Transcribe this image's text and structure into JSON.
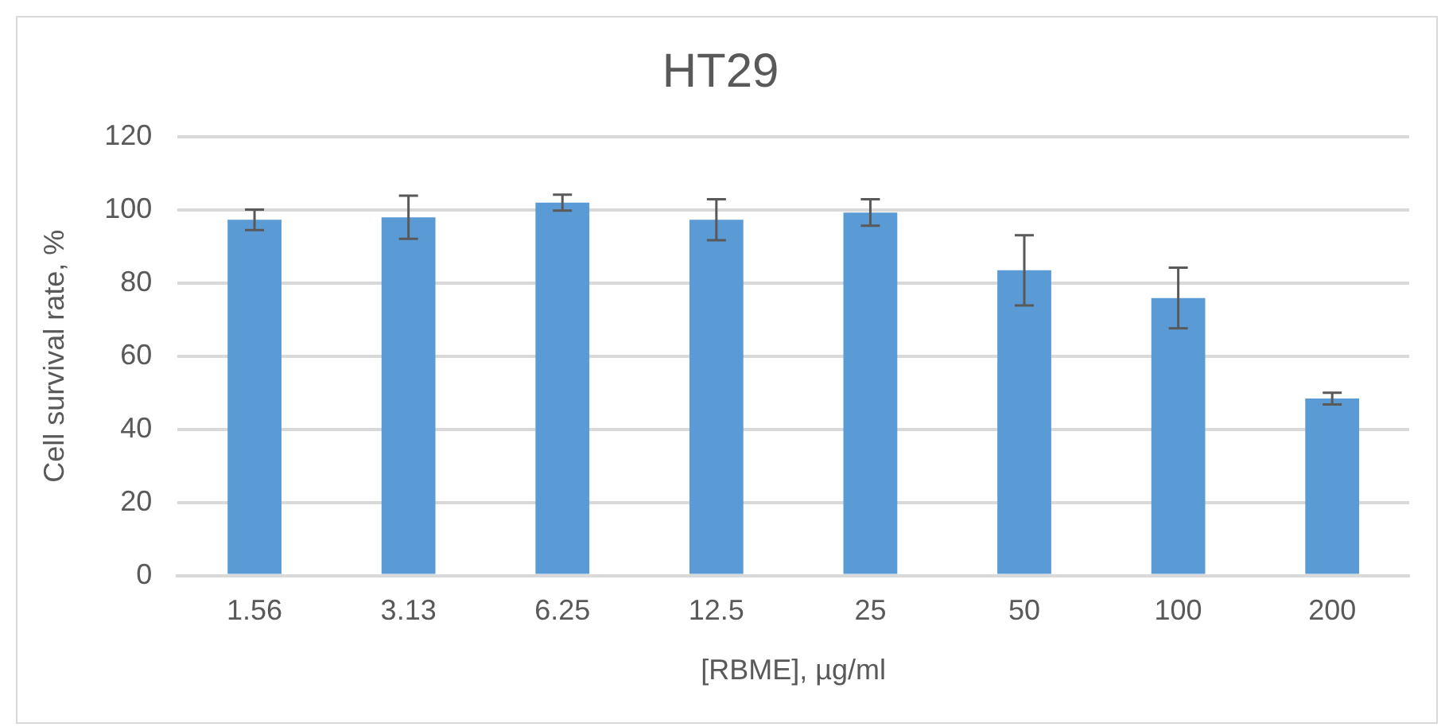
{
  "chart_data": {
    "type": "bar",
    "title": "HT29",
    "xlabel": "[RBME], µg/ml",
    "ylabel": "Cell survival rate, %",
    "categories": [
      "1.56",
      "3.13",
      "6.25",
      "12.5",
      "25",
      "50",
      "100",
      "200"
    ],
    "values": [
      97.3,
      98,
      102,
      97.3,
      99.3,
      83.5,
      75.9,
      48.4
    ],
    "errors": [
      2.8,
      5.9,
      2.2,
      5.6,
      3.6,
      9.6,
      8.3,
      1.6
    ],
    "color": "#5b9bd5",
    "ylim": [
      0,
      120
    ],
    "yticks": [
      0,
      20,
      40,
      60,
      80,
      100,
      120
    ],
    "grid": "y",
    "legend": false
  }
}
